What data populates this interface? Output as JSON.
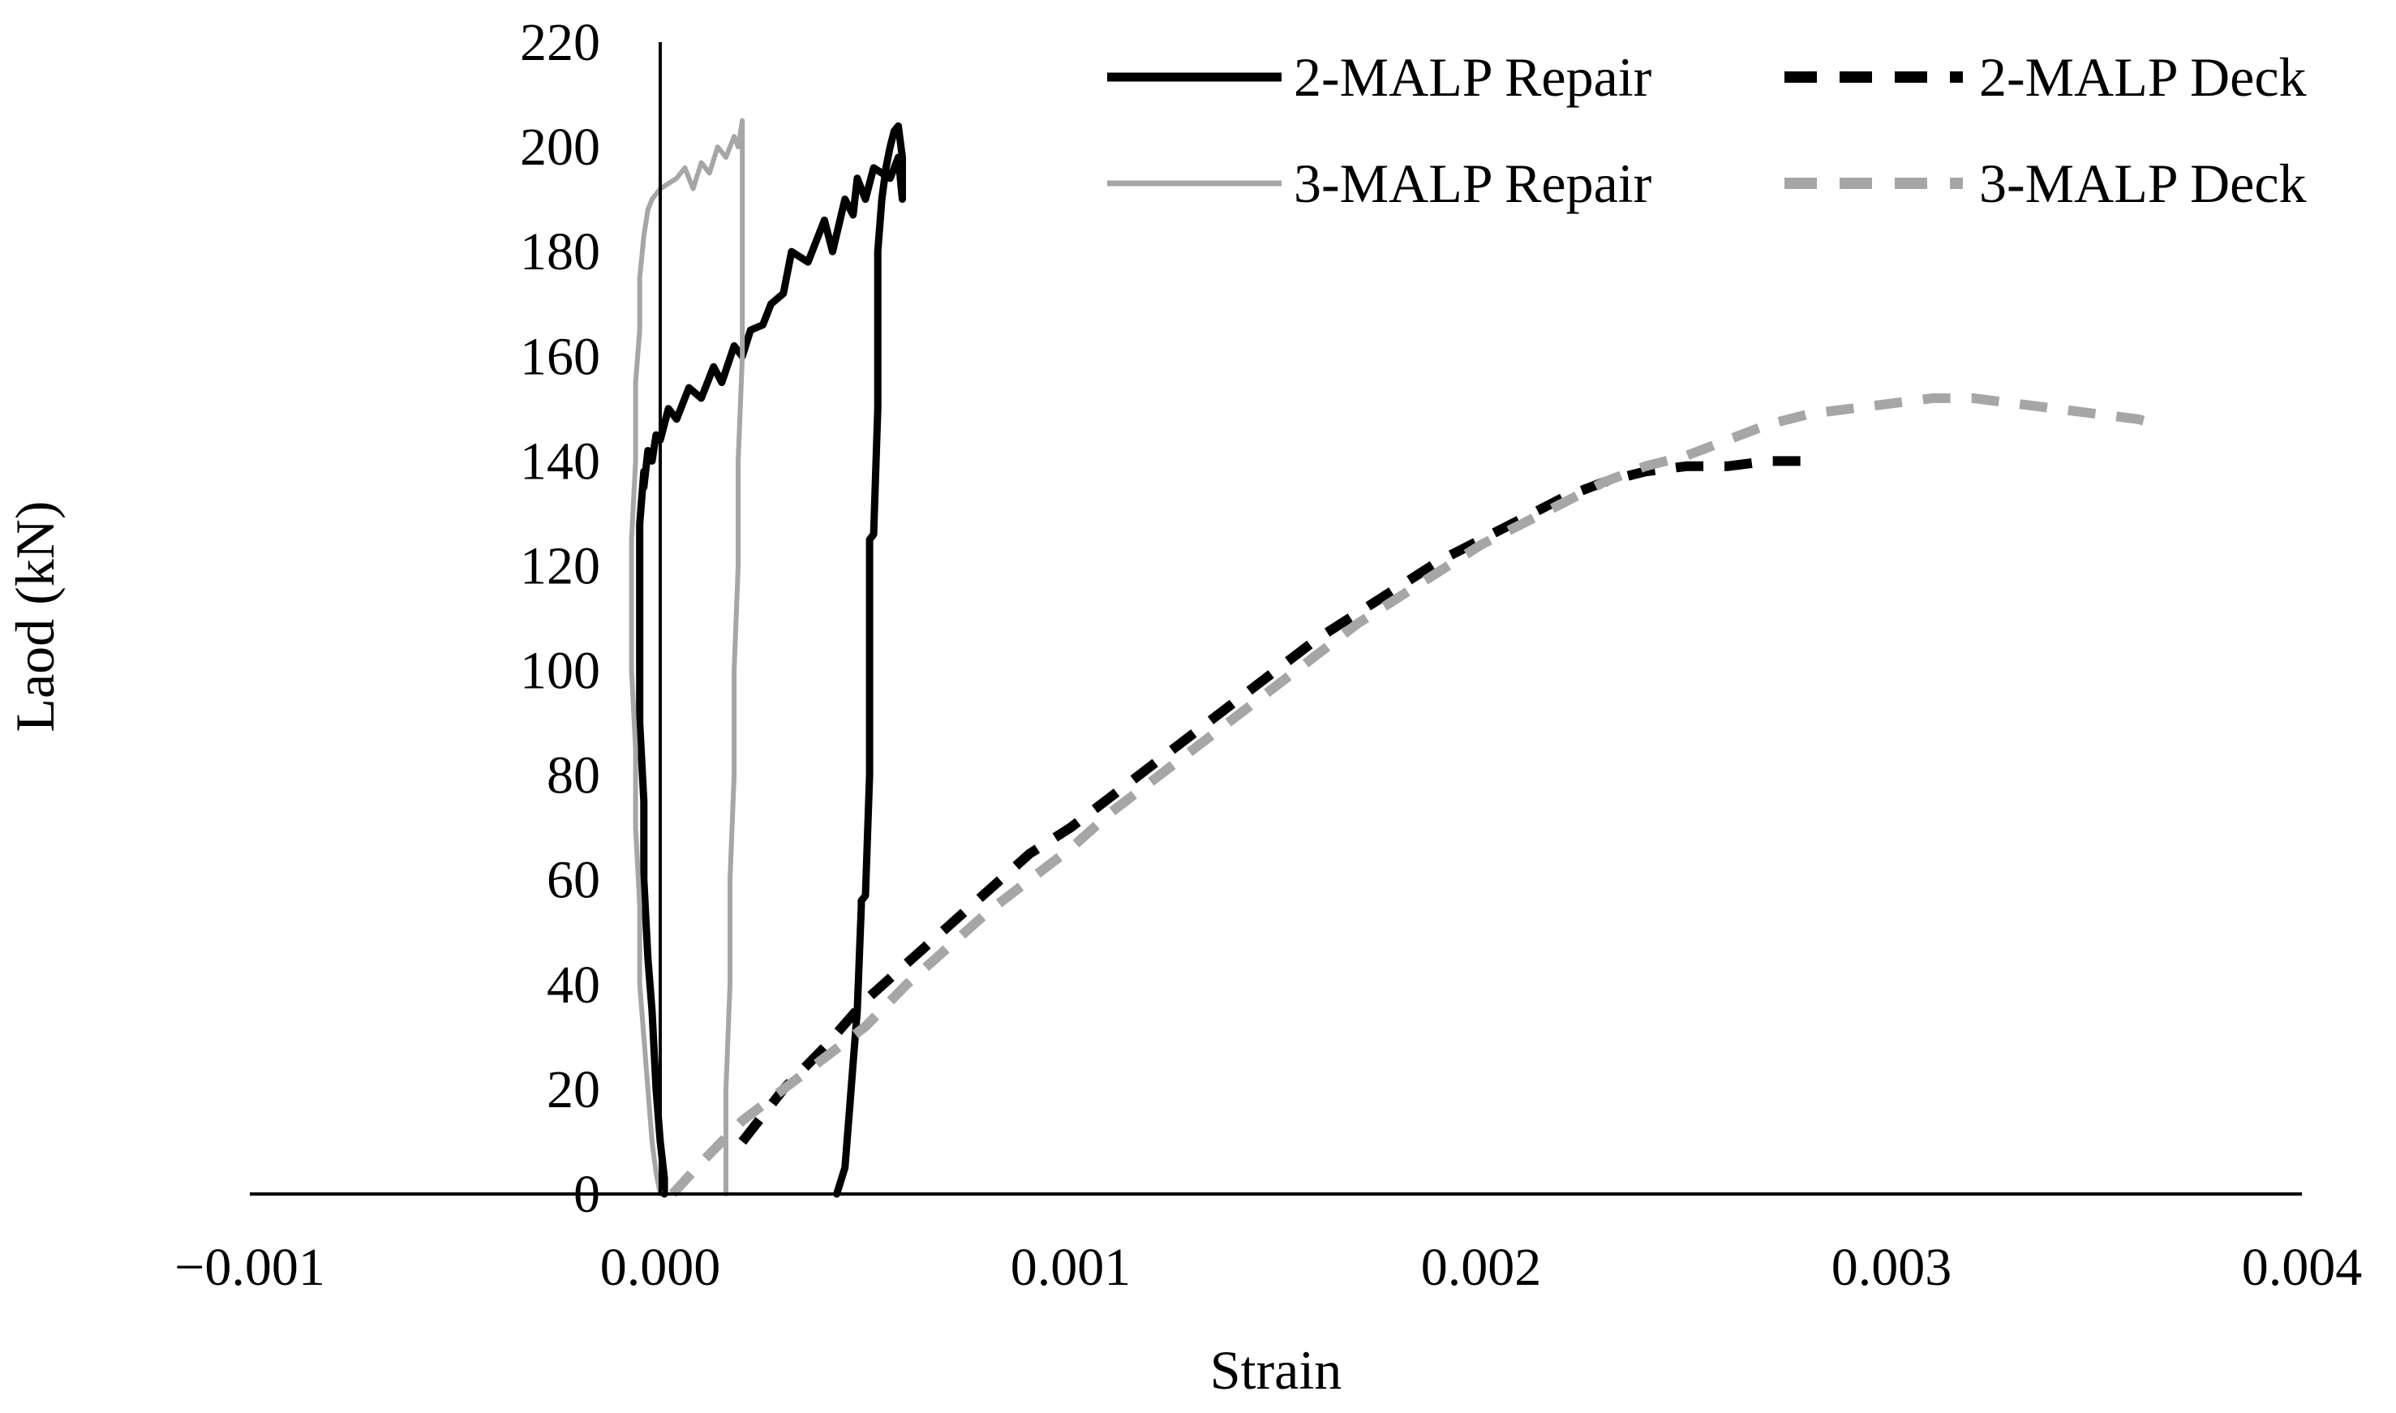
{
  "chart_data": {
    "type": "line",
    "xlabel": "Strain",
    "ylabel": "Laod (kN)",
    "xlim": [
      -0.001,
      0.004
    ],
    "ylim": [
      0,
      220
    ],
    "x_ticks": [
      -0.001,
      0.0,
      0.001,
      0.002,
      0.003,
      0.004
    ],
    "x_tick_labels": [
      "−0.001",
      "0.000",
      "0.001",
      "0.002",
      "0.003",
      "0.004"
    ],
    "y_ticks": [
      0,
      20,
      40,
      60,
      80,
      100,
      120,
      140,
      160,
      180,
      200,
      220
    ],
    "y_tick_labels": [
      "0",
      "20",
      "40",
      "60",
      "80",
      "100",
      "120",
      "140",
      "160",
      "180",
      "200",
      "220"
    ],
    "grid": false,
    "legend_position": "top-right",
    "series": [
      {
        "name": "2-MALP Repair",
        "color": "#000000",
        "style": "solid",
        "x": [
          0.00043,
          0.00045,
          0.00046,
          0.00047,
          0.00048,
          0.00049,
          0.00049,
          0.0005,
          0.00051,
          0.00051,
          0.00052,
          0.00053,
          0.00053,
          0.00054,
          0.00055,
          0.00056,
          0.00057,
          0.00058,
          0.00059,
          0.00059,
          0.00058,
          0.00056,
          0.00052,
          0.0005,
          0.00048,
          0.00047,
          0.00045,
          0.00042,
          0.0004,
          0.00036,
          0.00032,
          0.0003,
          0.00027,
          0.00025,
          0.00022,
          0.0002,
          0.00018,
          0.00015,
          0.00013,
          0.0001,
          7e-05,
          4e-05,
          2e-05,
          0.0,
          -1e-05,
          -2e-05,
          -3e-05,
          -4e-05,
          -4e-05,
          -5e-05,
          -5e-05,
          -5e-05,
          -5e-05,
          -5e-05,
          -4e-05,
          -4e-05,
          -3e-05,
          -2e-05,
          -1e-05,
          0.0,
          1e-05,
          1e-05
        ],
        "y": [
          0,
          5,
          15,
          25,
          35,
          55,
          56,
          57,
          80,
          125,
          126,
          150,
          180,
          190,
          196,
          200,
          203,
          204,
          198,
          190,
          198,
          194,
          196,
          190,
          194,
          187,
          190,
          180,
          186,
          178,
          180,
          172,
          170,
          166,
          165,
          160,
          162,
          155,
          158,
          152,
          154,
          148,
          150,
          144,
          145,
          140,
          142,
          135,
          138,
          128,
          125,
          122,
          110,
          90,
          75,
          60,
          45,
          35,
          20,
          10,
          3,
          0
        ]
      },
      {
        "name": "2-MALP Deck",
        "color": "#000000",
        "style": "dashed",
        "x": [
          0.0002,
          0.0003,
          0.0004,
          0.0005,
          0.0006,
          0.0007,
          0.0008,
          0.0009,
          0.001,
          0.0011,
          0.0012,
          0.0013,
          0.0014,
          0.0015,
          0.0016,
          0.0017,
          0.0018,
          0.0019,
          0.002,
          0.0021,
          0.0022,
          0.0023,
          0.0024,
          0.0025,
          0.0026,
          0.0027,
          0.0028
        ],
        "y": [
          10,
          20,
          28,
          37,
          44,
          51,
          58,
          65,
          70,
          76,
          82,
          88,
          94,
          100,
          106,
          111,
          116,
          121,
          125,
          129,
          133,
          136,
          138,
          139,
          139,
          140,
          140
        ]
      },
      {
        "name": "3-MALP Repair",
        "color": "#a6a6a6",
        "style": "solid",
        "x": [
          0.00016,
          0.00016,
          0.00017,
          0.00017,
          0.00018,
          0.00018,
          0.00019,
          0.00019,
          0.0002,
          0.0002,
          0.0002,
          0.00019,
          0.00018,
          0.00016,
          0.00014,
          0.00012,
          0.0001,
          8e-05,
          6e-05,
          4e-05,
          2e-05,
          0.0,
          -2e-05,
          -3e-05,
          -4e-05,
          -5e-05,
          -5e-05,
          -6e-05,
          -6e-05,
          -7e-05,
          -7e-05,
          -6e-05,
          -6e-05,
          -5e-05,
          -5e-05,
          -4e-05,
          -3e-05,
          -2e-05,
          -1e-05,
          0.0
        ],
        "y": [
          0,
          20,
          40,
          60,
          80,
          100,
          120,
          140,
          160,
          180,
          205,
          200,
          202,
          198,
          200,
          195,
          197,
          192,
          196,
          194,
          193,
          192,
          190,
          188,
          183,
          175,
          165,
          155,
          140,
          125,
          100,
          85,
          70,
          55,
          40,
          30,
          20,
          10,
          4,
          0
        ]
      },
      {
        "name": "3-MALP Deck",
        "color": "#a6a6a6",
        "style": "dashed",
        "x": [
          3e-05,
          0.0001,
          0.0002,
          0.0003,
          0.0004,
          0.0005,
          0.0006,
          0.0007,
          0.0008,
          0.0009,
          0.001,
          0.0011,
          0.0012,
          0.0013,
          0.0014,
          0.0015,
          0.0016,
          0.0017,
          0.0018,
          0.0019,
          0.002,
          0.0021,
          0.0022,
          0.0023,
          0.0024,
          0.0025,
          0.0026,
          0.0027,
          0.0028,
          0.0029,
          0.003,
          0.0031,
          0.0032,
          0.0033,
          0.0034,
          0.0035,
          0.0036,
          0.00365
        ],
        "y": [
          0,
          6,
          14,
          20,
          26,
          32,
          40,
          47,
          54,
          60,
          66,
          73,
          79,
          85,
          91,
          97,
          103,
          109,
          114,
          119,
          124,
          128,
          132,
          136,
          139,
          141,
          144,
          147,
          149,
          150,
          151,
          152,
          152,
          151,
          150,
          149,
          148,
          147
        ]
      }
    ]
  }
}
